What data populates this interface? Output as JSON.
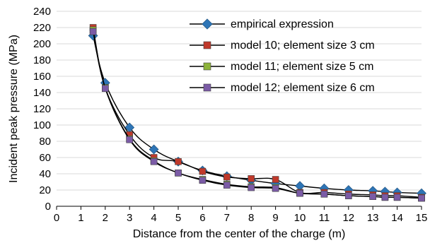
{
  "chart_data": {
    "type": "line",
    "xlabel": "Distance from the center of the charge (m)",
    "ylabel": "Incident peak pressure (MPa)",
    "xlim": [
      0,
      15
    ],
    "ylim": [
      0,
      240
    ],
    "xticks": [
      0,
      1,
      2,
      3,
      4,
      5,
      6,
      7,
      8,
      9,
      10,
      11,
      12,
      13,
      14,
      15
    ],
    "yticks": [
      0,
      20,
      40,
      60,
      80,
      100,
      120,
      140,
      160,
      180,
      200,
      220,
      240
    ],
    "grid": "horizontal",
    "legend_position": "top-right",
    "series": [
      {
        "name": "empirical expression",
        "marker": "diamond",
        "color": "#2E75B6",
        "x": [
          1.5,
          2,
          3,
          4,
          5,
          6,
          7,
          8,
          9,
          10,
          11,
          12,
          13,
          13.5,
          14,
          15
        ],
        "y": [
          210,
          152,
          97,
          70,
          55,
          44,
          37,
          32,
          28,
          25,
          22,
          20,
          19,
          18,
          17,
          16
        ]
      },
      {
        "name": "model 10; element size 3 cm",
        "marker": "square",
        "color": "#C0392B",
        "x": [
          1.5,
          2,
          3,
          4,
          5,
          6,
          7,
          8,
          9,
          10,
          11,
          12,
          13,
          13.5,
          14,
          15
        ],
        "y": [
          220,
          146,
          88,
          60,
          55,
          43,
          36,
          34,
          33,
          17,
          17,
          15,
          14,
          13,
          13,
          11
        ]
      },
      {
        "name": "model 11; element size 5 cm",
        "marker": "square",
        "color": "#8DB33A",
        "x": [
          1.5,
          2,
          3,
          4,
          5,
          6,
          7,
          8,
          9,
          10,
          11,
          12,
          13,
          13.5,
          14,
          15
        ],
        "y": [
          217,
          146,
          83,
          56,
          41,
          33,
          27,
          24,
          23,
          16,
          15,
          13,
          12,
          11,
          11,
          10
        ]
      },
      {
        "name": "model 12; element size 6 cm",
        "marker": "square",
        "color": "#7B5BA6",
        "x": [
          1.5,
          2,
          3,
          4,
          5,
          6,
          7,
          8,
          9,
          10,
          11,
          12,
          13,
          13.5,
          14,
          15
        ],
        "y": [
          215,
          145,
          82,
          55,
          41,
          32,
          26,
          23,
          22,
          16,
          15,
          13,
          12,
          11,
          11,
          10
        ]
      }
    ]
  }
}
